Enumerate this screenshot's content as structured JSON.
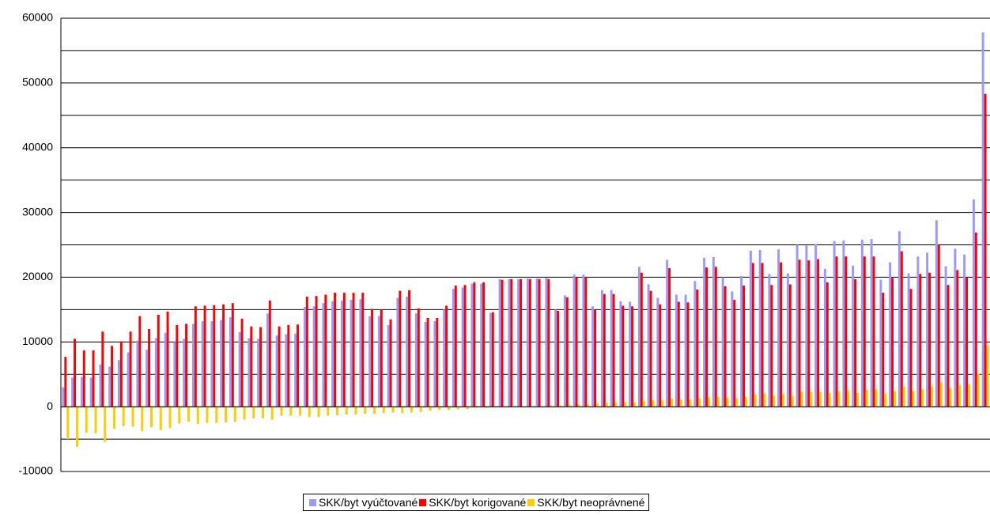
{
  "chart_data": {
    "type": "bar",
    "categories": [
      null,
      null,
      null,
      null,
      null,
      null,
      null,
      null,
      null,
      null,
      null,
      null,
      null,
      null,
      null,
      null,
      null,
      null,
      null,
      null,
      null,
      null,
      null,
      null,
      null,
      null,
      null,
      null,
      null,
      null,
      null,
      null,
      null,
      null,
      null,
      null,
      null,
      null,
      null,
      null,
      null,
      null,
      null,
      null,
      null,
      null,
      null,
      null,
      null,
      null,
      null,
      null,
      null,
      null,
      null,
      null,
      null,
      null,
      null,
      null,
      null,
      null,
      null,
      null,
      null,
      null,
      null,
      null,
      null,
      null,
      null,
      null,
      null,
      null,
      null,
      null,
      null,
      null,
      null,
      null,
      null,
      null,
      null,
      null,
      null,
      null,
      null,
      null,
      null,
      null,
      null,
      null,
      null,
      null,
      null,
      null,
      null,
      null,
      null,
      null
    ],
    "series": [
      {
        "name": "SKK/byt vyúčtované",
        "color": "#9999ff",
        "values": [
          3000,
          4500,
          4600,
          4500,
          6500,
          6200,
          7200,
          8400,
          10200,
          8800,
          10600,
          11400,
          10000,
          10500,
          12800,
          13200,
          13200,
          13400,
          13800,
          11500,
          10600,
          10500,
          14400,
          11000,
          11200,
          11300,
          15400,
          15500,
          16000,
          16300,
          16400,
          16500,
          16600,
          14000,
          14000,
          12600,
          16800,
          17000,
          14400,
          13100,
          13200,
          15000,
          18200,
          18400,
          19000,
          19000,
          14500,
          19700,
          19700,
          19700,
          19800,
          19800,
          19900,
          15000,
          17200,
          20400,
          20400,
          15500,
          18000,
          18000,
          16300,
          16200,
          21600,
          18900,
          16800,
          22700,
          17300,
          17300,
          19400,
          23000,
          23100,
          20000,
          17800,
          20200,
          24100,
          24200,
          20500,
          24300,
          20600,
          25000,
          24900,
          25100,
          21300,
          25600,
          25700,
          21800,
          25800,
          25900,
          19600,
          22300,
          27100,
          20600,
          23200,
          23800,
          28800,
          21700,
          24400,
          23500,
          32000,
          57800
        ]
      },
      {
        "name": "SKK/byt korigované",
        "color": "#ff0000",
        "values": [
          7700,
          10500,
          8700,
          8700,
          11600,
          9400,
          10100,
          11600,
          14000,
          12000,
          14200,
          14700,
          12600,
          12800,
          15500,
          15600,
          15700,
          15800,
          16000,
          13600,
          12400,
          12300,
          16400,
          12400,
          12600,
          12700,
          17000,
          17100,
          17300,
          17600,
          17600,
          17600,
          17600,
          15100,
          15000,
          13500,
          17900,
          18000,
          15200,
          13700,
          13700,
          15600,
          18700,
          18800,
          19200,
          19200,
          14600,
          19600,
          19700,
          19700,
          19700,
          19700,
          19700,
          14800,
          16900,
          20000,
          20000,
          15000,
          17400,
          17400,
          15600,
          15500,
          20700,
          17900,
          15800,
          21400,
          16200,
          16100,
          18100,
          21500,
          21600,
          18600,
          16500,
          18700,
          22200,
          22200,
          18800,
          22300,
          18900,
          22700,
          22600,
          22800,
          19200,
          23200,
          23200,
          19700,
          23200,
          23200,
          17600,
          19900,
          24000,
          18200,
          20500,
          20700,
          25000,
          18800,
          21100,
          20000,
          26900,
          48300
        ]
      },
      {
        "name": "SKK/byt neoprávnené",
        "color": "#ffcc00",
        "values": [
          -5000,
          -6200,
          -4000,
          -4100,
          -5400,
          -3400,
          -3000,
          -3100,
          -3800,
          -3200,
          -3600,
          -3300,
          -2600,
          -2300,
          -2700,
          -2500,
          -2500,
          -2400,
          -2300,
          -2000,
          -1800,
          -1800,
          -2000,
          -1400,
          -1400,
          -1400,
          -1600,
          -1600,
          -1400,
          -1300,
          -1200,
          -1200,
          -1100,
          -1100,
          -1000,
          -900,
          -1000,
          -900,
          -800,
          -600,
          -500,
          -500,
          -400,
          -400,
          -200,
          -200,
          -100,
          100,
          100,
          100,
          100,
          100,
          200,
          200,
          300,
          400,
          400,
          500,
          600,
          600,
          700,
          700,
          900,
          1000,
          1000,
          1300,
          1100,
          1100,
          1300,
          1500,
          1500,
          1400,
          1300,
          1500,
          1900,
          2000,
          1700,
          2000,
          1700,
          2300,
          2300,
          2300,
          2100,
          2400,
          2500,
          2100,
          2600,
          2700,
          2000,
          2400,
          3100,
          2400,
          2700,
          3100,
          3800,
          2900,
          3300,
          3500,
          5100,
          9500
        ]
      }
    ],
    "ylim": [
      -10000,
      60000
    ],
    "yticks": [
      -10000,
      0,
      10000,
      20000,
      30000,
      40000,
      50000,
      60000
    ],
    "minor_gridlines": [
      -5000,
      5000,
      15000,
      25000,
      35000,
      45000,
      55000
    ],
    "grid": true,
    "legend": "bottom"
  }
}
